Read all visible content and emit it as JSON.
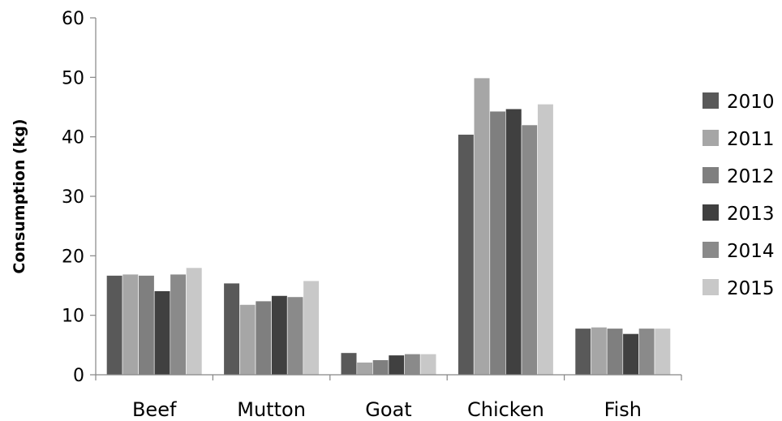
{
  "chart_data": {
    "type": "bar",
    "title": "",
    "xlabel": "",
    "ylabel": "Consumption (kg)",
    "ylim": [
      0,
      60
    ],
    "yticks": [
      "0",
      "10",
      "20",
      "30",
      "40",
      "50",
      "60"
    ],
    "categories": [
      "Beef",
      "Mutton",
      "Goat",
      "Chicken",
      "Fish"
    ],
    "grid": false,
    "legend_position": "right",
    "series": [
      {
        "name": "2010",
        "color": "#595959",
        "values": [
          16.7,
          15.4,
          3.7,
          40.4,
          7.8
        ]
      },
      {
        "name": "2011",
        "color": "#a6a6a6",
        "values": [
          16.9,
          11.8,
          2.1,
          49.9,
          8.0
        ]
      },
      {
        "name": "2012",
        "color": "#7f7f7f",
        "values": [
          16.7,
          12.4,
          2.5,
          44.3,
          7.8
        ]
      },
      {
        "name": "2013",
        "color": "#404040",
        "values": [
          14.1,
          13.3,
          3.3,
          44.7,
          6.9
        ]
      },
      {
        "name": "2014",
        "color": "#8a8a8a",
        "values": [
          16.9,
          13.1,
          3.5,
          42.0,
          7.8
        ]
      },
      {
        "name": "2015",
        "color": "#c8c8c8",
        "values": [
          18.0,
          15.8,
          3.5,
          45.5,
          7.8
        ]
      }
    ]
  }
}
